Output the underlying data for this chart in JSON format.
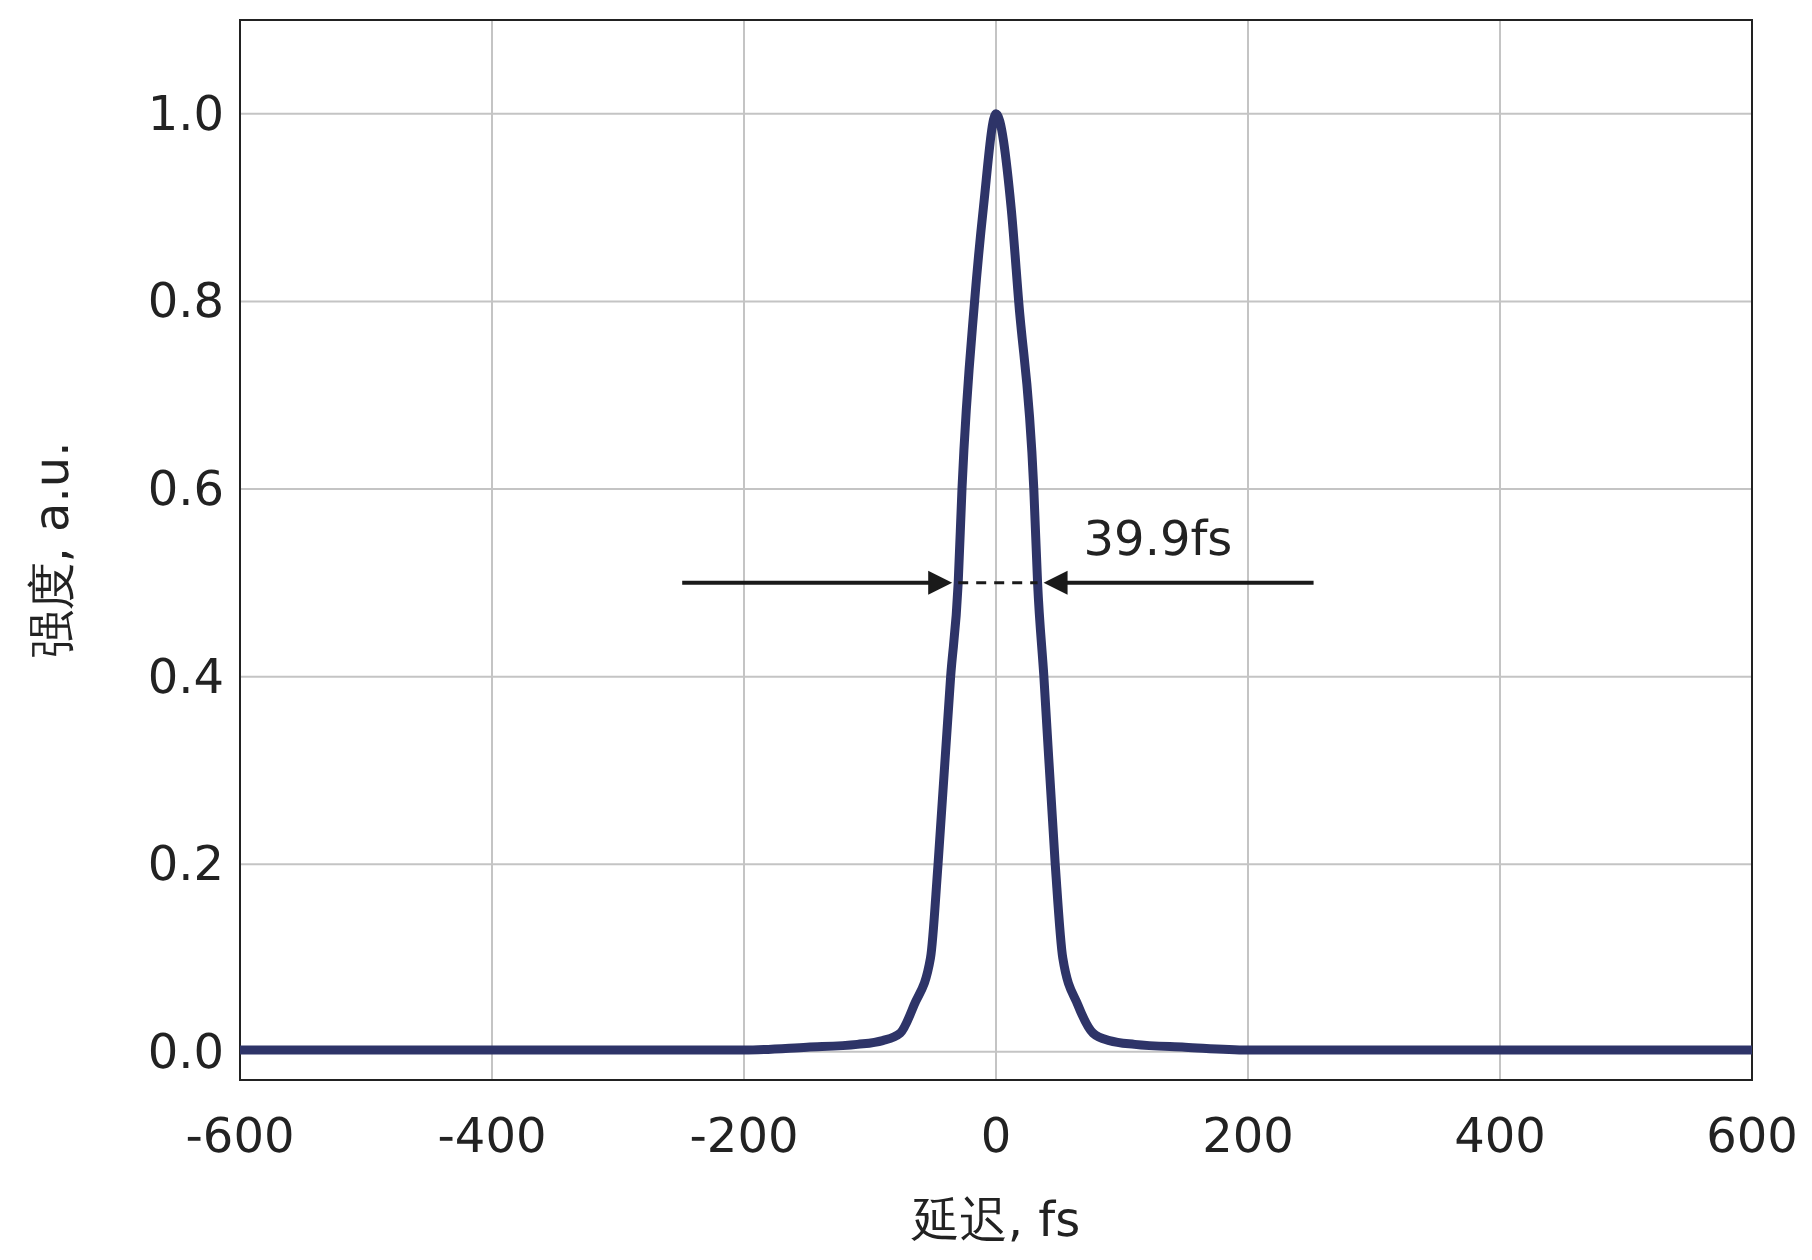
{
  "chart_data": {
    "type": "line",
    "xlabel": "延迟, fs",
    "ylabel": "强度, a.u.",
    "x": [
      -600,
      -500,
      -400,
      -300,
      -200,
      -150,
      -110,
      -90,
      -76,
      -65,
      -52,
      -46,
      -36,
      -30,
      -27,
      -17,
      -10,
      0,
      12,
      18,
      30,
      33,
      38,
      47,
      53,
      65,
      77,
      90,
      110,
      150,
      200,
      300,
      400,
      500,
      600
    ],
    "series": [
      {
        "color": "#2e3468",
        "values": [
          0.002,
          0.002,
          0.002,
          0.002,
          0.002,
          0.005,
          0.008,
          0.012,
          0.02,
          0.05,
          0.1,
          0.2,
          0.4,
          0.5,
          0.6,
          0.8,
          0.9,
          1.0,
          0.9,
          0.8,
          0.6,
          0.5,
          0.4,
          0.2,
          0.1,
          0.05,
          0.02,
          0.012,
          0.008,
          0.005,
          0.002,
          0.002,
          0.002,
          0.002,
          0.002
        ]
      }
    ],
    "xlim": [
      -600,
      600
    ],
    "ylim": [
      -0.03,
      1.1
    ],
    "xticks": [
      -600,
      -400,
      -200,
      0,
      200,
      400,
      600
    ],
    "yticks": [
      {
        "value": 0,
        "label": "0.0"
      },
      {
        "value": 0.2,
        "label": "0.2"
      },
      {
        "value": 0.4,
        "label": "0.4"
      },
      {
        "value": 0.6,
        "label": "0.6"
      },
      {
        "value": 0.8,
        "label": "0.8"
      },
      {
        "value": 1,
        "label": "1.0"
      }
    ],
    "grid": true,
    "line_style": "solid",
    "marker": "none",
    "annotations": [
      "39.9fs"
    ]
  }
}
